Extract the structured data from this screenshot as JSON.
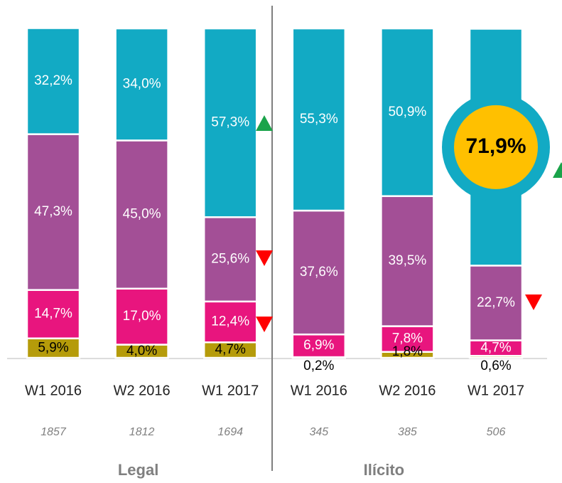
{
  "chart_data": {
    "type": "stacked_bar",
    "categories": [
      "W1 2016",
      "W2 2016",
      "W1 2017",
      "W1 2016",
      "W2 2016",
      "W1 2017"
    ],
    "sample_sizes": [
      1857,
      1812,
      1694,
      345,
      385,
      506
    ],
    "groups": [
      "Legal",
      "Ilícito"
    ],
    "ylim": [
      0,
      100
    ],
    "series": [
      {
        "color": "#b59b0a",
        "label_color": "#000000",
        "values": [
          5.9,
          4.0,
          4.7,
          0.2,
          1.8,
          0.6
        ],
        "value_labels": [
          "5,9%",
          "4,0%",
          "4,7%",
          "0,2%",
          "1,8%",
          "0,6%"
        ]
      },
      {
        "color": "#e8157e",
        "label_color": "#ffffff",
        "values": [
          14.7,
          17.0,
          12.4,
          6.9,
          7.8,
          4.7
        ],
        "value_labels": [
          "14,7%",
          "17,0%",
          "12,4%",
          "6,9%",
          "7,8%",
          "4,7%"
        ]
      },
      {
        "color": "#a34f96",
        "label_color": "#ffffff",
        "values": [
          47.3,
          45.0,
          25.6,
          37.6,
          39.5,
          22.7
        ],
        "value_labels": [
          "47,3%",
          "45,0%",
          "25,6%",
          "37,6%",
          "39,5%",
          "22,7%"
        ]
      },
      {
        "color": "#12aac4",
        "label_color": "#ffffff",
        "highlight": 5,
        "values": [
          32.2,
          34.0,
          57.3,
          55.3,
          50.9,
          71.9
        ],
        "value_labels": [
          "32,2%",
          "34,0%",
          "57,3%",
          "55,3%",
          "50,9%",
          "71,9%"
        ]
      }
    ]
  }
}
